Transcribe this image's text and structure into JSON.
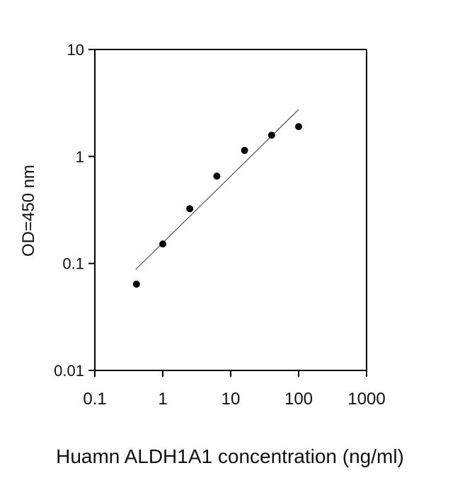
{
  "chart_data": {
    "type": "scatter",
    "xlabel": "Huamn ALDH1A1 concentration (ng/ml)",
    "ylabel": "OD=450 nm",
    "xscale": "log",
    "yscale": "log",
    "xlim": [
      0.1,
      1000
    ],
    "ylim": [
      0.01,
      10
    ],
    "x_ticks": [
      0.1,
      1,
      10,
      100,
      1000
    ],
    "x_tick_labels": [
      "0.1",
      "1",
      "10",
      "100",
      "1000"
    ],
    "y_ticks": [
      0.01,
      0.1,
      1,
      10
    ],
    "y_tick_labels": [
      "0.01",
      "0.1",
      "1",
      "10"
    ],
    "grid": false,
    "legend": "none",
    "series": [
      {
        "points": [
          {
            "x": 0.41,
            "y": 0.064
          },
          {
            "x": 1.0,
            "y": 0.152
          },
          {
            "x": 2.5,
            "y": 0.325
          },
          {
            "x": 6.25,
            "y": 0.655
          },
          {
            "x": 16,
            "y": 1.14
          },
          {
            "x": 40,
            "y": 1.58
          },
          {
            "x": 100,
            "y": 1.9
          }
        ]
      }
    ],
    "trendline": {
      "type": "power",
      "points": [
        {
          "x": 0.4,
          "y": 0.088
        },
        {
          "x": 100,
          "y": 2.75
        }
      ]
    },
    "colors": {
      "points": "#000000",
      "line": "#333333",
      "axis": "#000000"
    }
  }
}
